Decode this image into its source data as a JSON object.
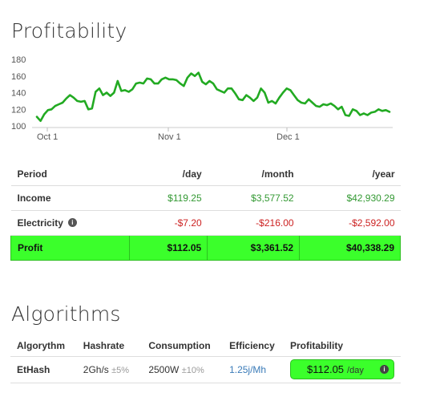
{
  "profitability": {
    "title": "Profitability"
  },
  "chart_data": {
    "type": "line",
    "y_ticks": [
      180,
      160,
      140,
      120,
      100
    ],
    "ylim": [
      100,
      180
    ],
    "x_tick_labels": [
      "Oct 1",
      "Nov 1",
      "Dec 1"
    ],
    "x_start": "Sep 26",
    "x_end": "Dec 31",
    "series": [
      {
        "color": "#22aa22",
        "values": [
          111,
          106,
          114,
          119,
          120,
          124,
          126,
          128,
          133,
          137,
          134,
          130,
          129,
          130,
          120,
          121,
          141,
          145,
          137,
          140,
          136,
          140,
          154,
          142,
          143,
          141,
          144,
          151,
          152,
          151,
          157,
          156,
          151,
          151,
          156,
          158,
          156,
          156,
          155,
          151,
          148,
          158,
          163,
          160,
          164,
          153,
          150,
          154,
          151,
          144,
          142,
          140,
          145,
          145,
          139,
          132,
          131,
          137,
          134,
          130,
          134,
          145,
          140,
          128,
          130,
          127,
          134,
          140,
          145,
          143,
          137,
          131,
          128,
          127,
          132,
          128,
          124,
          123,
          126,
          125,
          127,
          124,
          120,
          123,
          113,
          112,
          120,
          118,
          113,
          115,
          113,
          116,
          117,
          120,
          118,
          119,
          117
        ]
      }
    ]
  },
  "profit_table": {
    "headers": [
      "Period",
      "/day",
      "/month",
      "/year"
    ],
    "rows": [
      {
        "label": "Income",
        "day": "$119.25",
        "month": "$3,577.52",
        "year": "$42,930.29"
      },
      {
        "label": "Electricity",
        "day": "-$7.20",
        "month": "-$216.00",
        "year": "-$2,592.00"
      },
      {
        "label": "Profit",
        "day": "$112.05",
        "month": "$3,361.52",
        "year": "$40,338.29"
      }
    ],
    "info_icon": "info-icon"
  },
  "algorithms": {
    "title": "Algorithms",
    "headers": [
      "Algorythm",
      "Hashrate",
      "Consumption",
      "Efficiency",
      "Profitability"
    ],
    "rows": [
      {
        "name": "EtHash",
        "hashrate": "2Gh/s",
        "hashrate_var": "±5%",
        "consumption": "2500W",
        "consumption_var": "±10%",
        "efficiency": "1.25j/Mh",
        "profit": "$112.05",
        "profit_unit": "/day"
      }
    ]
  },
  "colors": {
    "line": "#22aa22",
    "profit_highlight": "#3bff2b",
    "positive": "#339933",
    "negative": "#cc2222",
    "efficiency_link": "#3a7bb8"
  }
}
